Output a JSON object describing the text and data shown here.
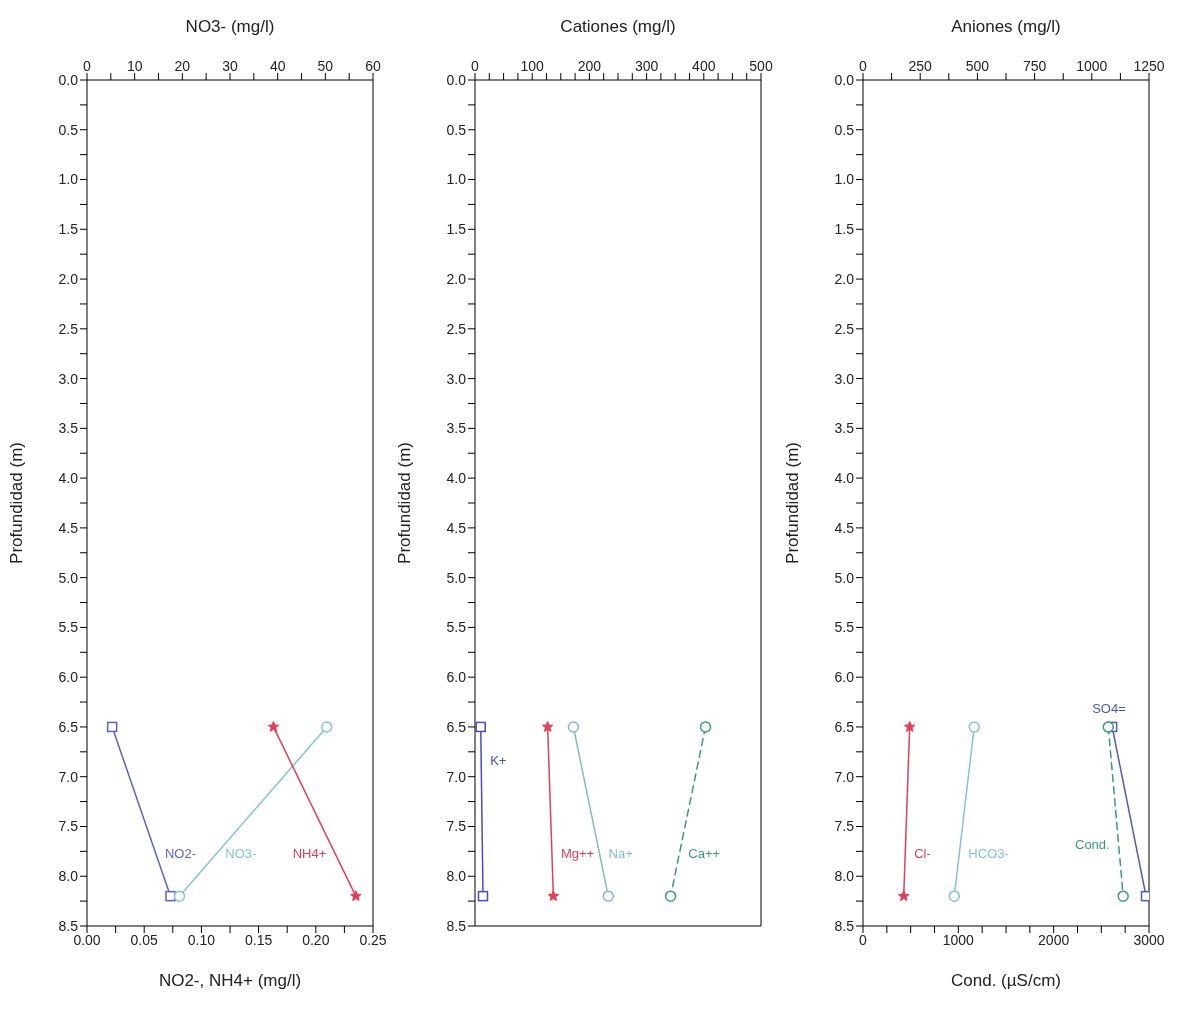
{
  "chart_data": [
    {
      "type": "line",
      "x2label": "NO3- (mg/l)",
      "xlabel": "NO2-, NH4+ (mg/l)",
      "ylabel": "Profundidad (m)",
      "ylim": [
        8.5,
        0
      ],
      "yticks": [
        {
          "value": 0,
          "label": "0.0"
        },
        {
          "value": 0.25,
          "label": null
        },
        {
          "value": 0.5,
          "label": "0.5"
        },
        {
          "value": 0.75,
          "label": null
        },
        {
          "value": 1,
          "label": "1.0"
        },
        {
          "value": 1.25,
          "label": null
        },
        {
          "value": 1.5,
          "label": "1.5"
        },
        {
          "value": 1.75,
          "label": null
        },
        {
          "value": 2,
          "label": "2.0"
        },
        {
          "value": 2.25,
          "label": null
        },
        {
          "value": 2.5,
          "label": "2.5"
        },
        {
          "value": 2.75,
          "label": null
        },
        {
          "value": 3,
          "label": "3.0"
        },
        {
          "value": 3.25,
          "label": null
        },
        {
          "value": 3.5,
          "label": "3.5"
        },
        {
          "value": 3.75,
          "label": null
        },
        {
          "value": 4,
          "label": "4.0"
        },
        {
          "value": 4.25,
          "label": null
        },
        {
          "value": 4.5,
          "label": "4.5"
        },
        {
          "value": 4.75,
          "label": null
        },
        {
          "value": 5,
          "label": "5.0"
        },
        {
          "value": 5.25,
          "label": null
        },
        {
          "value": 5.5,
          "label": "5.5"
        },
        {
          "value": 5.75,
          "label": null
        },
        {
          "value": 6,
          "label": "6.0"
        },
        {
          "value": 6.25,
          "label": null
        },
        {
          "value": 6.5,
          "label": "6.5"
        },
        {
          "value": 6.75,
          "label": null
        },
        {
          "value": 7,
          "label": "7.0"
        },
        {
          "value": 7.25,
          "label": null
        },
        {
          "value": 7.5,
          "label": "7.5"
        },
        {
          "value": 7.75,
          "label": null
        },
        {
          "value": 8,
          "label": "8.0"
        },
        {
          "value": 8.25,
          "label": null
        },
        {
          "value": 8.5,
          "label": "8.5"
        }
      ],
      "xlim": [
        0,
        0.25
      ],
      "xticks": [
        {
          "value": 0,
          "label": "0.00"
        },
        {
          "value": 0.025,
          "label": null
        },
        {
          "value": 0.05,
          "label": "0.05"
        },
        {
          "value": 0.075,
          "label": null
        },
        {
          "value": 0.1,
          "label": "0.10"
        },
        {
          "value": 0.125,
          "label": null
        },
        {
          "value": 0.15,
          "label": "0.15"
        },
        {
          "value": 0.175,
          "label": null
        },
        {
          "value": 0.2,
          "label": "0.20"
        },
        {
          "value": 0.225,
          "label": null
        },
        {
          "value": 0.25,
          "label": "0.25"
        }
      ],
      "x2lim": [
        0,
        60
      ],
      "x2ticks": [
        0,
        {
          "value": 5,
          "label": null
        },
        10,
        {
          "value": 15,
          "label": null
        },
        20,
        {
          "value": 25,
          "label": null
        },
        30,
        {
          "value": 35,
          "label": null
        },
        40,
        {
          "value": 45,
          "label": null
        },
        50,
        {
          "value": 55,
          "label": null
        },
        60
      ],
      "series": [
        {
          "name": "NO2-",
          "color": "#5a64c8",
          "marker": "square",
          "line_style": "solid",
          "x": [
            0.022,
            0.073
          ],
          "values": [
            6.5,
            8.2
          ]
        },
        {
          "name": "NO3-",
          "color": "#86c2d6",
          "marker": "circle",
          "line_style": "solid",
          "axis": "x2",
          "x": [
            50.3,
            19.4
          ],
          "values": [
            6.5,
            8.2
          ]
        },
        {
          "name": "NH4+",
          "color": "#e0405a",
          "marker": "star",
          "line_style": "solid",
          "x": [
            0.163,
            0.235
          ],
          "values": [
            6.5,
            8.2
          ]
        }
      ]
    },
    {
      "type": "line",
      "xlabel": "Cationes (mg/l)",
      "ylabel": "Profundidad (m)",
      "ylim": [
        8.5,
        0
      ],
      "yticks": [
        {
          "value": 0,
          "label": "0.0"
        },
        {
          "value": 0.25,
          "label": null
        },
        {
          "value": 0.5,
          "label": "0.5"
        },
        {
          "value": 0.75,
          "label": null
        },
        {
          "value": 1,
          "label": "1.0"
        },
        {
          "value": 1.25,
          "label": null
        },
        {
          "value": 1.5,
          "label": "1.5"
        },
        {
          "value": 1.75,
          "label": null
        },
        {
          "value": 2,
          "label": "2.0"
        },
        {
          "value": 2.25,
          "label": null
        },
        {
          "value": 2.5,
          "label": "2.5"
        },
        {
          "value": 2.75,
          "label": null
        },
        {
          "value": 3,
          "label": "3.0"
        },
        {
          "value": 3.25,
          "label": null
        },
        {
          "value": 3.5,
          "label": "3.5"
        },
        {
          "value": 3.75,
          "label": null
        },
        {
          "value": 4,
          "label": "4.0"
        },
        {
          "value": 4.25,
          "label": null
        },
        {
          "value": 4.5,
          "label": "4.5"
        },
        {
          "value": 4.75,
          "label": null
        },
        {
          "value": 5,
          "label": "5.0"
        },
        {
          "value": 5.25,
          "label": null
        },
        {
          "value": 5.5,
          "label": "5.5"
        },
        {
          "value": 5.75,
          "label": null
        },
        {
          "value": 6,
          "label": "6.0"
        },
        {
          "value": 6.25,
          "label": null
        },
        {
          "value": 6.5,
          "label": "6.5"
        },
        {
          "value": 6.75,
          "label": null
        },
        {
          "value": 7,
          "label": "7.0"
        },
        {
          "value": 7.25,
          "label": null
        },
        {
          "value": 7.5,
          "label": "7.5"
        },
        {
          "value": 7.75,
          "label": null
        },
        {
          "value": 8,
          "label": "8.0"
        },
        {
          "value": 8.25,
          "label": null
        },
        {
          "value": 8.5,
          "label": "8.5"
        }
      ],
      "xlim": [
        0,
        500
      ],
      "xticks": [
        0,
        {
          "value": 25,
          "label": null
        },
        {
          "value": 50,
          "label": null
        },
        {
          "value": 75,
          "label": null
        },
        100,
        {
          "value": 125,
          "label": null
        },
        {
          "value": 150,
          "label": null
        },
        {
          "value": 175,
          "label": null
        },
        200,
        {
          "value": 225,
          "label": null
        },
        {
          "value": 250,
          "label": null
        },
        {
          "value": 275,
          "label": null
        },
        300,
        {
          "value": 325,
          "label": null
        },
        {
          "value": 350,
          "label": null
        },
        {
          "value": 375,
          "label": null
        },
        400,
        {
          "value": 425,
          "label": null
        },
        {
          "value": 450,
          "label": null
        },
        {
          "value": 475,
          "label": null
        },
        500
      ],
      "series": [
        {
          "name": "K+",
          "color": "#4a4ac8",
          "marker": "square",
          "line_style": "solid",
          "x": [
            10,
            14
          ],
          "values": [
            6.5,
            8.2
          ]
        },
        {
          "name": "Mg++",
          "color": "#e0405a",
          "marker": "star",
          "line_style": "solid",
          "x": [
            127,
            137
          ],
          "values": [
            6.5,
            8.2
          ]
        },
        {
          "name": "Na+",
          "color": "#86b8cc",
          "marker": "circle",
          "line_style": "solid",
          "x": [
            172,
            233
          ],
          "values": [
            6.5,
            8.2
          ]
        },
        {
          "name": "Ca++",
          "color": "#3a9a78",
          "marker": "circle",
          "line_style": "dashed",
          "x": [
            403,
            342
          ],
          "values": [
            6.5,
            8.2
          ]
        }
      ]
    },
    {
      "type": "line",
      "x2label": "Aniones (mg/l)",
      "xlabel": "Cond. (µS/cm)",
      "ylabel": "Profundidad (m)",
      "ylim": [
        8.5,
        0
      ],
      "yticks": [
        {
          "value": 0,
          "label": "0.0"
        },
        {
          "value": 0.25,
          "label": null
        },
        {
          "value": 0.5,
          "label": "0.5"
        },
        {
          "value": 0.75,
          "label": null
        },
        {
          "value": 1,
          "label": "1.0"
        },
        {
          "value": 1.25,
          "label": null
        },
        {
          "value": 1.5,
          "label": "1.5"
        },
        {
          "value": 1.75,
          "label": null
        },
        {
          "value": 2,
          "label": "2.0"
        },
        {
          "value": 2.25,
          "label": null
        },
        {
          "value": 2.5,
          "label": "2.5"
        },
        {
          "value": 2.75,
          "label": null
        },
        {
          "value": 3,
          "label": "3.0"
        },
        {
          "value": 3.25,
          "label": null
        },
        {
          "value": 3.5,
          "label": "3.5"
        },
        {
          "value": 3.75,
          "label": null
        },
        {
          "value": 4,
          "label": "4.0"
        },
        {
          "value": 4.25,
          "label": null
        },
        {
          "value": 4.5,
          "label": "4.5"
        },
        {
          "value": 4.75,
          "label": null
        },
        {
          "value": 5,
          "label": "5.0"
        },
        {
          "value": 5.25,
          "label": null
        },
        {
          "value": 5.5,
          "label": "5.5"
        },
        {
          "value": 5.75,
          "label": null
        },
        {
          "value": 6,
          "label": "6.0"
        },
        {
          "value": 6.25,
          "label": null
        },
        {
          "value": 6.5,
          "label": "6.5"
        },
        {
          "value": 6.75,
          "label": null
        },
        {
          "value": 7,
          "label": "7.0"
        },
        {
          "value": 7.25,
          "label": null
        },
        {
          "value": 7.5,
          "label": "7.5"
        },
        {
          "value": 7.75,
          "label": null
        },
        {
          "value": 8,
          "label": "8.0"
        },
        {
          "value": 8.25,
          "label": null
        },
        {
          "value": 8.5,
          "label": "8.5"
        }
      ],
      "xlim": [
        0,
        3000
      ],
      "xticks": [
        0,
        {
          "value": 250,
          "label": null
        },
        {
          "value": 500,
          "label": null
        },
        {
          "value": 750,
          "label": null
        },
        1000,
        {
          "value": 1250,
          "label": null
        },
        {
          "value": 1500,
          "label": null
        },
        {
          "value": 1750,
          "label": null
        },
        2000,
        {
          "value": 2250,
          "label": null
        },
        {
          "value": 2500,
          "label": null
        },
        {
          "value": 2750,
          "label": null
        },
        3000
      ],
      "x2lim": [
        0,
        1250
      ],
      "x2ticks": [
        0,
        {
          "value": 125,
          "label": null
        },
        250,
        {
          "value": 375,
          "label": null
        },
        500,
        {
          "value": 625,
          "label": null
        },
        750,
        {
          "value": 875,
          "label": null
        },
        1000,
        {
          "value": 1125,
          "label": null
        },
        1250
      ],
      "series": [
        {
          "name": "Cl-",
          "color": "#e0405a",
          "marker": "star",
          "line_style": "solid",
          "axis": "x2",
          "x": [
            204,
            178
          ],
          "values": [
            6.5,
            8.2
          ]
        },
        {
          "name": "HCO3-",
          "color": "#86c2d6",
          "marker": "circle",
          "line_style": "solid",
          "axis": "x2",
          "x": [
            486,
            399
          ],
          "values": [
            6.5,
            8.2
          ]
        },
        {
          "name": "SO4=",
          "color": "#4a58c0",
          "marker": "square",
          "line_style": "solid",
          "axis": "x2",
          "x": [
            1089,
            1237
          ],
          "values": [
            6.5,
            8.2
          ]
        },
        {
          "name": "Cond.",
          "color": "#3a9a78",
          "marker": "circle",
          "line_style": "dashed",
          "x": [
            2573,
            2729
          ],
          "values": [
            6.5,
            8.2
          ]
        }
      ]
    }
  ]
}
